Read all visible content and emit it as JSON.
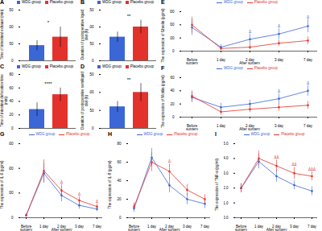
{
  "chart_data": [
    {
      "panel": "A",
      "type": "bar",
      "ylabel": "Time of intestinal exhaust (min)",
      "legend": "top",
      "tick_labels": "y",
      "grid": false,
      "ylim": [
        0,
        150
      ],
      "yticks": [
        0,
        50,
        100,
        150
      ],
      "significance": "*",
      "series": [
        {
          "name": "WDG group",
          "color": "#3b66d6",
          "values": [
            45
          ],
          "errors": [
            15
          ]
        },
        {
          "name": "Placebo group",
          "color": "#e3322b",
          "values": [
            70
          ],
          "errors": [
            30
          ]
        }
      ]
    },
    {
      "panel": "B",
      "type": "bar",
      "ylabel": "Duration of postoperative liquid diet (h)",
      "legend": "top",
      "tick_labels": "y",
      "grid": false,
      "ylim": [
        0,
        150
      ],
      "yticks": [
        0,
        50,
        100,
        150
      ],
      "significance": "**",
      "series": [
        {
          "name": "WDG group",
          "color": "#3b66d6",
          "values": [
            70
          ],
          "errors": [
            15
          ]
        },
        {
          "name": "Placebo group",
          "color": "#e3322b",
          "values": [
            100
          ],
          "errors": [
            20
          ]
        }
      ]
    },
    {
      "panel": "C",
      "type": "bar",
      "ylabel": "Time of intestinal defecation time (min)",
      "legend": "top",
      "tick_labels": "y",
      "grid": false,
      "ylim": [
        0,
        80
      ],
      "yticks": [
        0,
        20,
        40,
        60,
        80
      ],
      "significance": "****",
      "series": [
        {
          "name": "WDG group",
          "color": "#3b66d6",
          "values": [
            28
          ],
          "errors": [
            10
          ]
        },
        {
          "name": "Placebo group",
          "color": "#e3322b",
          "values": [
            50
          ],
          "errors": [
            10
          ]
        }
      ]
    },
    {
      "panel": "D",
      "type": "bar",
      "ylabel": "Duration of postoperative semiliquid diet (h)",
      "legend": "top",
      "tick_labels": "y",
      "grid": false,
      "ylim": [
        0,
        150
      ],
      "yticks": [
        0,
        50,
        100,
        150
      ],
      "significance": "**",
      "series": [
        {
          "name": "WDG group",
          "color": "#3b66d6",
          "values": [
            60
          ],
          "errors": [
            15
          ]
        },
        {
          "name": "Placebo group",
          "color": "#e3322b",
          "values": [
            100
          ],
          "errors": [
            25
          ]
        }
      ]
    },
    {
      "panel": "E",
      "type": "line",
      "ylabel": "The expression of Ghrelin (pg/ml)",
      "xlabel": "After surgery",
      "legend": "top",
      "grid": false,
      "categories": [
        "Before surgery",
        "1 day",
        "2 day",
        "3 day",
        "7 day"
      ],
      "ylim": [
        0,
        300
      ],
      "yticks": [
        0,
        100,
        200,
        300
      ],
      "series": [
        {
          "name": "WDG group",
          "color": "#3b66d6",
          "marker": "circle",
          "values": [
            180,
            30,
            90,
            130,
            190
          ],
          "errors": [
            60,
            20,
            40,
            40,
            50
          ]
        },
        {
          "name": "Placebo group",
          "color": "#e3322b",
          "marker": "square",
          "values": [
            200,
            20,
            30,
            60,
            80
          ],
          "errors": [
            60,
            15,
            20,
            25,
            30
          ]
        }
      ],
      "annotations": [
        {
          "category": "2 day",
          "series": "WDG group",
          "text": "Δ"
        },
        {
          "category": "3 day",
          "series": "WDG group",
          "text": "Δ"
        },
        {
          "category": "7 day",
          "series": "WDG group",
          "text": "Δ"
        }
      ]
    },
    {
      "panel": "F",
      "type": "line",
      "ylabel": "The expression of Motilin (pg/ml)",
      "xlabel": "After surgery",
      "legend": "top",
      "grid": false,
      "categories": [
        "Before surgery",
        "1 day",
        "2 day",
        "3 day",
        "7 day"
      ],
      "ylim": [
        0,
        60
      ],
      "yticks": [
        0,
        20,
        40,
        60
      ],
      "series": [
        {
          "name": "WDG group",
          "color": "#3b66d6",
          "marker": "circle",
          "values": [
            30,
            15,
            20,
            28,
            40
          ],
          "errors": [
            8,
            6,
            6,
            7,
            8
          ]
        },
        {
          "name": "Placebo group",
          "color": "#e3322b",
          "marker": "square",
          "values": [
            32,
            8,
            12,
            15,
            18
          ],
          "errors": [
            8,
            5,
            5,
            6,
            6
          ]
        }
      ],
      "annotations": [
        {
          "category": "3 day",
          "series": "WDG group",
          "text": "Δ"
        },
        {
          "category": "7 day",
          "series": "WDG group",
          "text": "Δ"
        }
      ]
    },
    {
      "panel": "G",
      "type": "line",
      "ylabel": "The expression of IL-6 (pg/ml)",
      "xlabel": "After surgery",
      "legend": "top",
      "grid": false,
      "categories": [
        "Before surgery",
        "1 day",
        "2 day",
        "3 day",
        "7 day"
      ],
      "ylim": [
        0,
        600
      ],
      "yticks": [
        0,
        200,
        400,
        600
      ],
      "series": [
        {
          "name": "WDG group",
          "color": "#3b66d6",
          "marker": "circle",
          "values": [
            20,
            360,
            180,
            100,
            70
          ],
          "errors": [
            10,
            80,
            50,
            30,
            20
          ]
        },
        {
          "name": "Placebo group",
          "color": "#e3322b",
          "marker": "square",
          "values": [
            20,
            380,
            220,
            140,
            90
          ],
          "errors": [
            10,
            90,
            50,
            30,
            20
          ]
        }
      ],
      "annotations": [
        {
          "category": "2 day",
          "series": "Placebo group",
          "text": "Δ"
        },
        {
          "category": "3 day",
          "series": "Placebo group",
          "text": "Δ"
        },
        {
          "category": "7 day",
          "series": "Placebo group",
          "text": "Δ"
        }
      ]
    },
    {
      "panel": "H",
      "type": "line",
      "ylabel": "The expression of IL-8 (pg/ml)",
      "xlabel": "After surgery",
      "legend": "top",
      "grid": false,
      "categories": [
        "Before surgery",
        "1 day",
        "2 day",
        "3 day",
        "7 day"
      ],
      "ylim": [
        0,
        80
      ],
      "yticks": [
        0,
        20,
        40,
        60,
        80
      ],
      "series": [
        {
          "name": "WDG group",
          "color": "#3b66d6",
          "marker": "circle",
          "values": [
            10,
            65,
            35,
            20,
            15
          ],
          "errors": [
            4,
            10,
            8,
            6,
            5
          ]
        },
        {
          "name": "Placebo group",
          "color": "#e3322b",
          "marker": "square",
          "values": [
            12,
            60,
            50,
            30,
            20
          ],
          "errors": [
            4,
            10,
            8,
            6,
            5
          ]
        }
      ],
      "annotations": [
        {
          "category": "2 day",
          "series": "Placebo group",
          "text": "Δ"
        }
      ]
    },
    {
      "panel": "I",
      "type": "line",
      "ylabel": "The expression of TNF-α (pg/ml)",
      "xlabel": "After surgery",
      "legend": "top",
      "grid": false,
      "categories": [
        "Before surgery",
        "1 day",
        "2 day",
        "3 day",
        "7 day"
      ],
      "ylim": [
        0,
        5
      ],
      "yticks": [
        0,
        1,
        2,
        3,
        4,
        5
      ],
      "series": [
        {
          "name": "WDG group",
          "color": "#3b66d6",
          "marker": "circle",
          "values": [
            2,
            3.8,
            2.8,
            2.2,
            1.8
          ],
          "errors": [
            0.3,
            0.5,
            0.4,
            0.3,
            0.3
          ]
        },
        {
          "name": "Placebo group",
          "color": "#e3322b",
          "marker": "square",
          "values": [
            2,
            4,
            3.5,
            3,
            2.8
          ],
          "errors": [
            0.3,
            0.5,
            0.4,
            0.4,
            0.3
          ]
        }
      ],
      "annotations": [
        {
          "category": "2 day",
          "series": "Placebo group",
          "text": "ΔΔ"
        },
        {
          "category": "3 day",
          "series": "Placebo group",
          "text": "ΔΔ"
        },
        {
          "category": "7 day",
          "series": "Placebo group",
          "text": "ΔΔΔ"
        }
      ]
    }
  ]
}
